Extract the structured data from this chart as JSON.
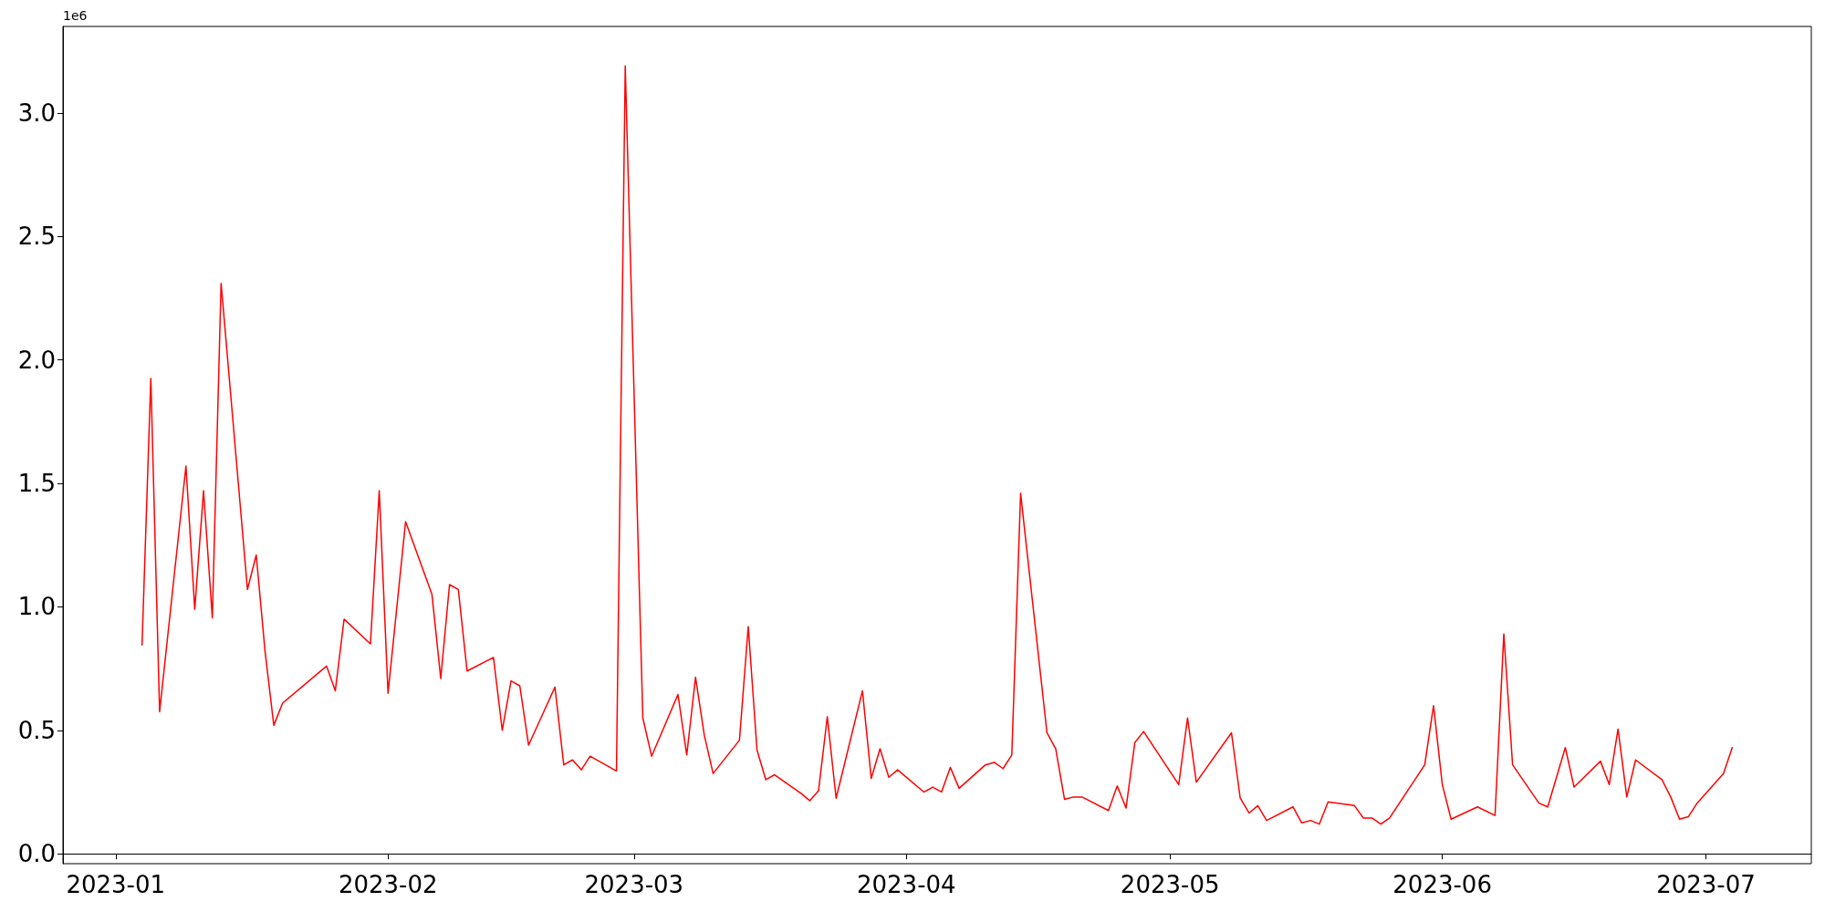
{
  "chart_data": {
    "type": "line",
    "annotations": [
      "1e6"
    ],
    "x": [
      "2023-01-04",
      "2023-01-05",
      "2023-01-06",
      "2023-01-09",
      "2023-01-10",
      "2023-01-11",
      "2023-01-12",
      "2023-01-13",
      "2023-01-16",
      "2023-01-17",
      "2023-01-18",
      "2023-01-19",
      "2023-01-20",
      "2023-01-25",
      "2023-01-26",
      "2023-01-27",
      "2023-01-30",
      "2023-01-31",
      "2023-02-01",
      "2023-02-03",
      "2023-02-06",
      "2023-02-07",
      "2023-02-08",
      "2023-02-09",
      "2023-02-10",
      "2023-02-13",
      "2023-02-14",
      "2023-02-15",
      "2023-02-16",
      "2023-02-17",
      "2023-02-20",
      "2023-02-21",
      "2023-02-22",
      "2023-02-23",
      "2023-02-24",
      "2023-02-27",
      "2023-02-28",
      "2023-03-02",
      "2023-03-03",
      "2023-03-06",
      "2023-03-07",
      "2023-03-08",
      "2023-03-09",
      "2023-03-10",
      "2023-03-13",
      "2023-03-14",
      "2023-03-15",
      "2023-03-16",
      "2023-03-17",
      "2023-03-20",
      "2023-03-21",
      "2023-03-22",
      "2023-03-23",
      "2023-03-24",
      "2023-03-27",
      "2023-03-28",
      "2023-03-29",
      "2023-03-30",
      "2023-03-31",
      "2023-04-03",
      "2023-04-04",
      "2023-04-05",
      "2023-04-06",
      "2023-04-07",
      "2023-04-10",
      "2023-04-11",
      "2023-04-12",
      "2023-04-13",
      "2023-04-14",
      "2023-04-17",
      "2023-04-18",
      "2023-04-19",
      "2023-04-20",
      "2023-04-21",
      "2023-04-24",
      "2023-04-25",
      "2023-04-26",
      "2023-04-27",
      "2023-04-28",
      "2023-05-02",
      "2023-05-03",
      "2023-05-04",
      "2023-05-08",
      "2023-05-09",
      "2023-05-10",
      "2023-05-11",
      "2023-05-12",
      "2023-05-15",
      "2023-05-16",
      "2023-05-17",
      "2023-05-18",
      "2023-05-19",
      "2023-05-22",
      "2023-05-23",
      "2023-05-24",
      "2023-05-25",
      "2023-05-26",
      "2023-05-30",
      "2023-05-31",
      "2023-06-01",
      "2023-06-02",
      "2023-06-05",
      "2023-06-07",
      "2023-06-08",
      "2023-06-09",
      "2023-06-12",
      "2023-06-13",
      "2023-06-15",
      "2023-06-16",
      "2023-06-19",
      "2023-06-20",
      "2023-06-21",
      "2023-06-22",
      "2023-06-23",
      "2023-06-26",
      "2023-06-27",
      "2023-06-28",
      "2023-06-29",
      "2023-06-30",
      "2023-07-03",
      "2023-07-04"
    ],
    "series": [
      {
        "color": "#ff0000",
        "values": [
          0.845,
          1.925,
          0.575,
          1.57,
          0.99,
          1.47,
          0.955,
          2.31,
          1.07,
          1.21,
          0.82,
          0.52,
          0.61,
          0.76,
          0.66,
          0.95,
          0.85,
          1.47,
          0.65,
          1.345,
          1.05,
          0.71,
          1.09,
          1.07,
          0.74,
          0.795,
          0.5,
          0.7,
          0.68,
          0.44,
          0.675,
          0.36,
          0.38,
          0.34,
          0.395,
          0.335,
          3.19,
          0.55,
          0.395,
          0.645,
          0.4,
          0.715,
          0.48,
          0.325,
          0.46,
          0.92,
          0.42,
          0.3,
          0.32,
          0.245,
          0.215,
          0.255,
          0.555,
          0.225,
          0.66,
          0.305,
          0.425,
          0.31,
          0.34,
          0.25,
          0.27,
          0.25,
          0.35,
          0.265,
          0.36,
          0.37,
          0.345,
          0.4,
          1.46,
          0.49,
          0.425,
          0.22,
          0.23,
          0.23,
          0.175,
          0.275,
          0.185,
          0.45,
          0.495,
          0.28,
          0.55,
          0.29,
          0.49,
          0.225,
          0.165,
          0.195,
          0.135,
          0.19,
          0.125,
          0.135,
          0.12,
          0.21,
          0.195,
          0.145,
          0.145,
          0.12,
          0.145,
          0.36,
          0.6,
          0.28,
          0.14,
          0.19,
          0.155,
          0.89,
          0.36,
          0.205,
          0.19,
          0.43,
          0.27,
          0.375,
          0.28,
          0.505,
          0.23,
          0.38,
          0.3,
          0.23,
          0.14,
          0.15,
          0.205,
          0.325,
          0.43
        ]
      }
    ],
    "xlim": [
      "2022-12-26",
      "2023-07-13"
    ],
    "xticks": [
      {
        "value": "2023-01-01",
        "label": "2023-01"
      },
      {
        "value": "2023-02-01",
        "label": "2023-02"
      },
      {
        "value": "2023-03-01",
        "label": "2023-03"
      },
      {
        "value": "2023-04-01",
        "label": "2023-04"
      },
      {
        "value": "2023-05-01",
        "label": "2023-05"
      },
      {
        "value": "2023-06-01",
        "label": "2023-06"
      },
      {
        "value": "2023-07-01",
        "label": "2023-07"
      }
    ],
    "ylim": [
      -0.04,
      3.35
    ],
    "yticks": [
      {
        "value": 0,
        "label": "0.0"
      },
      {
        "value": 0.5,
        "label": "0.5"
      },
      {
        "value": 1,
        "label": "1.0"
      },
      {
        "value": 1.5,
        "label": "1.5"
      },
      {
        "value": 2,
        "label": "2.0"
      },
      {
        "value": 2.5,
        "label": "2.5"
      },
      {
        "value": 3,
        "label": "3.0"
      }
    ],
    "marker": "none",
    "line_style": "solid"
  }
}
